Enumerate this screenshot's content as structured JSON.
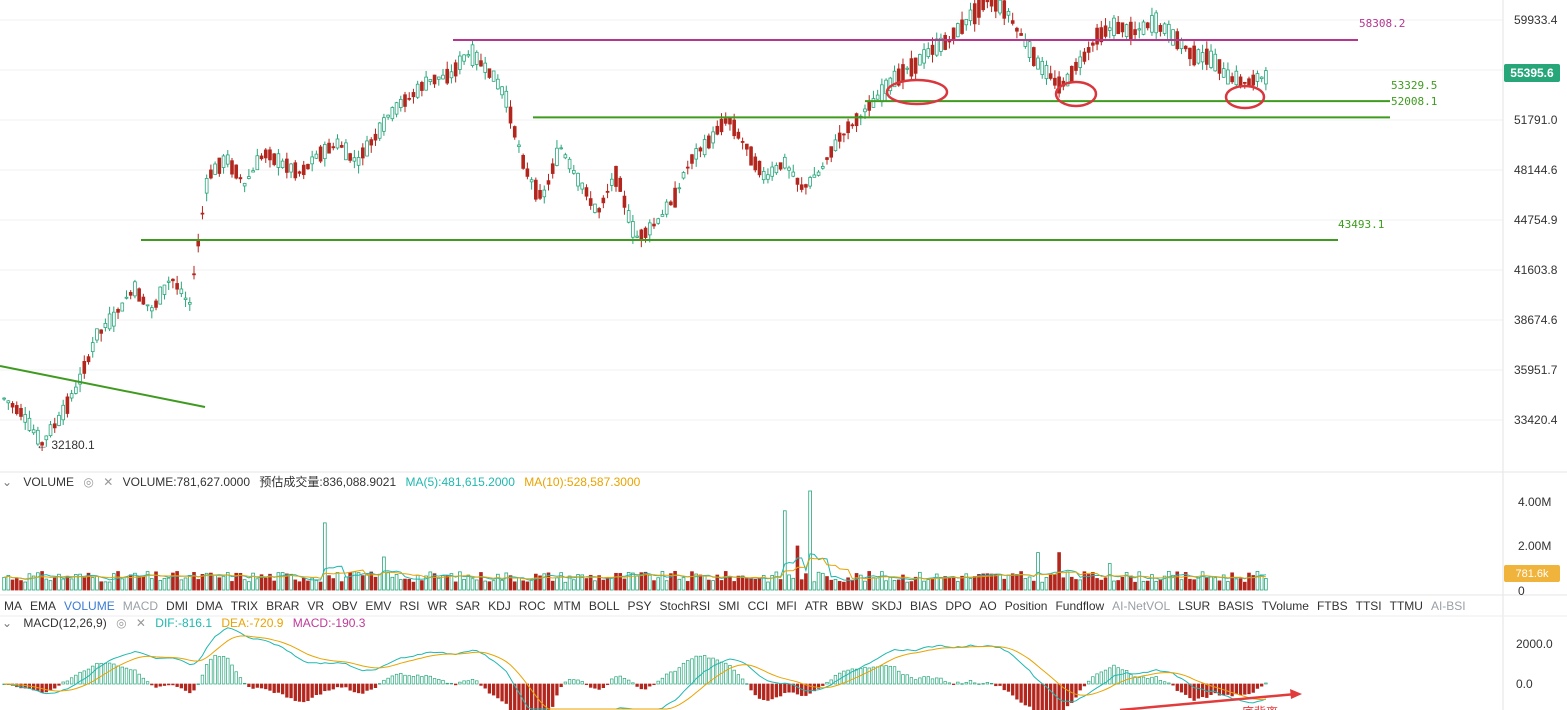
{
  "chart_data": {
    "type": "candlestick",
    "title": "",
    "price_axis_ticks": [
      "59933.4",
      "51791.0",
      "48144.6",
      "44754.9",
      "41603.8",
      "38674.6",
      "35951.7",
      "33420.4"
    ],
    "last_price": "55395.6",
    "low_annotation": "32180.1",
    "levels": [
      {
        "label": "58308.2",
        "value": 58308.2,
        "color": "#b5358f"
      },
      {
        "label": "53329.5",
        "value": 53329.5,
        "color": "#3e9b1f"
      },
      {
        "label": "52008.1",
        "value": 52008.1,
        "color": "#3e9b1f"
      },
      {
        "label": "43493.1",
        "value": 43493.1,
        "color": "#3e9b1f"
      }
    ],
    "price_series": [
      34500,
      33800,
      32180,
      33500,
      35200,
      37800,
      38900,
      40600,
      39200,
      41200,
      39500,
      47800,
      48900,
      47200,
      49400,
      48600,
      47900,
      49300,
      50100,
      48700,
      50600,
      52600,
      53800,
      55100,
      55300,
      57200,
      56100,
      53800,
      48500,
      46100,
      49800,
      47400,
      45200,
      47900,
      43600,
      44400,
      45900,
      48800,
      50200,
      52000,
      49800,
      47600,
      48700,
      46900,
      48000,
      50500,
      51900,
      53400,
      55200,
      56200,
      57400,
      58400,
      60100,
      61600,
      60800,
      58200,
      55800,
      54500,
      56600,
      58800,
      59400,
      58900,
      59700,
      58600,
      57200,
      56800,
      55300,
      54800,
      55400
    ]
  },
  "volume": {
    "chevron": "chevron-down-icon",
    "name": "VOLUME",
    "value_label": "VOLUME:781,627.0000",
    "est_label": "预估成交量:836,088.9021",
    "ma5_label": "MA(5):481,615.2000",
    "ma10_label": "MA(10):528,587.3000",
    "axis_ticks": [
      "4.00M",
      "2.00M",
      "0"
    ],
    "badge": "781.6k",
    "ma5_color": "#1fb8b0",
    "ma10_color": "#e9a300"
  },
  "indicators": [
    "MA",
    "EMA",
    "VOLUME",
    "MACD",
    "DMI",
    "DMA",
    "TRIX",
    "BRAR",
    "VR",
    "OBV",
    "EMV",
    "RSI",
    "WR",
    "SAR",
    "KDJ",
    "ROC",
    "MTM",
    "BOLL",
    "PSY",
    "StochRSI",
    "SMI",
    "CCI",
    "MFI",
    "ATR",
    "BBW",
    "SKDJ",
    "BIAS",
    "DPO",
    "AO",
    "Position",
    "Fundflow",
    "AI-NetVOL",
    "LSUR",
    "BASIS",
    "TVolume",
    "FTBS",
    "TTSI",
    "TTMU",
    "AI-BSI"
  ],
  "indicator_active": "VOLUME",
  "macd": {
    "name": "MACD(12,26,9)",
    "dif_label": "DIF:-816.1",
    "dea_label": "DEA:-720.9",
    "macd_label": "MACD:-190.3",
    "axis_ticks": [
      "2000.0",
      "0.0"
    ],
    "annotation": "底背离"
  },
  "colors": {
    "up": "#27a67a",
    "down": "#b3261e",
    "green_line": "#3e9b1f",
    "magenta_line": "#c03a9a",
    "circle": "#d9363e",
    "arrow": "#e23b3b"
  }
}
